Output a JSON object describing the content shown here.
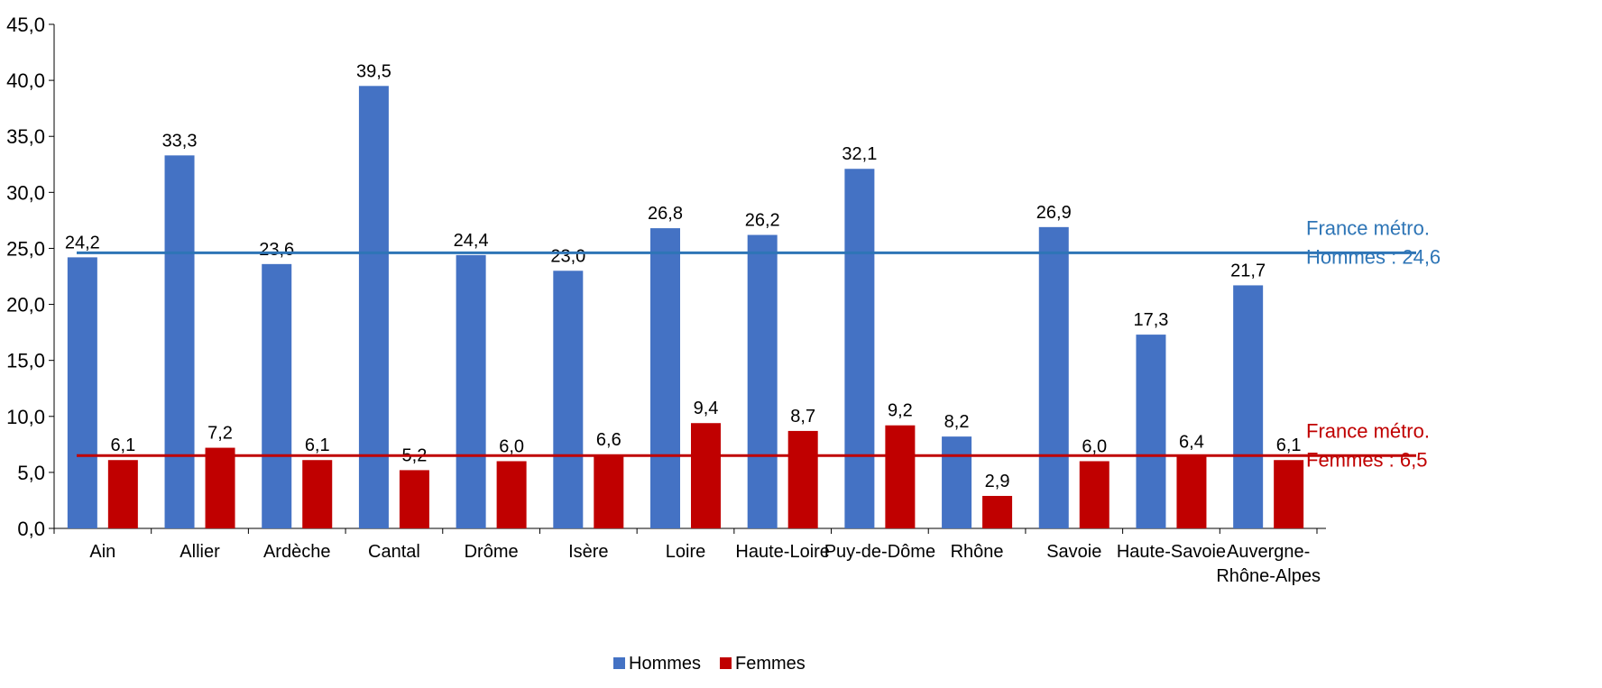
{
  "chart_data": {
    "type": "bar",
    "title": "",
    "xlabel": "",
    "ylabel": "",
    "ylim": [
      0,
      45
    ],
    "yticks": [
      "0,0",
      "5,0",
      "10,0",
      "15,0",
      "20,0",
      "25,0",
      "30,0",
      "35,0",
      "40,0",
      "45,0"
    ],
    "grid": false,
    "legend_position": "bottom",
    "categories": [
      [
        "Ain"
      ],
      [
        "Allier"
      ],
      [
        "Ardèche"
      ],
      [
        "Cantal"
      ],
      [
        "Drôme"
      ],
      [
        "Isère"
      ],
      [
        "Loire"
      ],
      [
        "Haute-Loire"
      ],
      [
        "Puy-de-Dôme"
      ],
      [
        "Rhône"
      ],
      [
        "Savoie"
      ],
      [
        "Haute-Savoie"
      ],
      [
        "Auvergne-",
        "Rhône-Alpes"
      ]
    ],
    "series": [
      {
        "name": "Hommes",
        "color": "#4472C4",
        "values": [
          24.2,
          33.3,
          23.6,
          39.5,
          24.4,
          23.0,
          26.8,
          26.2,
          32.1,
          8.2,
          26.9,
          17.3,
          21.7
        ],
        "labels": [
          "24,2",
          "33,3",
          "23,6",
          "39,5",
          "24,4",
          "23,0",
          "26,8",
          "26,2",
          "32,1",
          "8,2",
          "26,9",
          "17,3",
          "21,7"
        ]
      },
      {
        "name": "Femmes",
        "color": "#C00000",
        "values": [
          6.1,
          7.2,
          6.1,
          5.2,
          6.0,
          6.6,
          9.4,
          8.7,
          9.2,
          2.9,
          6.0,
          6.4,
          6.1
        ],
        "labels": [
          "6,1",
          "7,2",
          "6,1",
          "5,2",
          "6,0",
          "6,6",
          "9,4",
          "8,7",
          "9,2",
          "2,9",
          "6,0",
          "6,4",
          "6,1"
        ]
      }
    ],
    "reference_lines": [
      {
        "value": 24.6,
        "color": "#2E75B6",
        "label_color": "#2E75B6",
        "label": [
          "France métro.",
          "Hommes : 24,6"
        ]
      },
      {
        "value": 6.5,
        "color": "#C00000",
        "label_color": "#C00000",
        "label": [
          "France métro.",
          "Femmes : 6,5"
        ]
      }
    ]
  }
}
